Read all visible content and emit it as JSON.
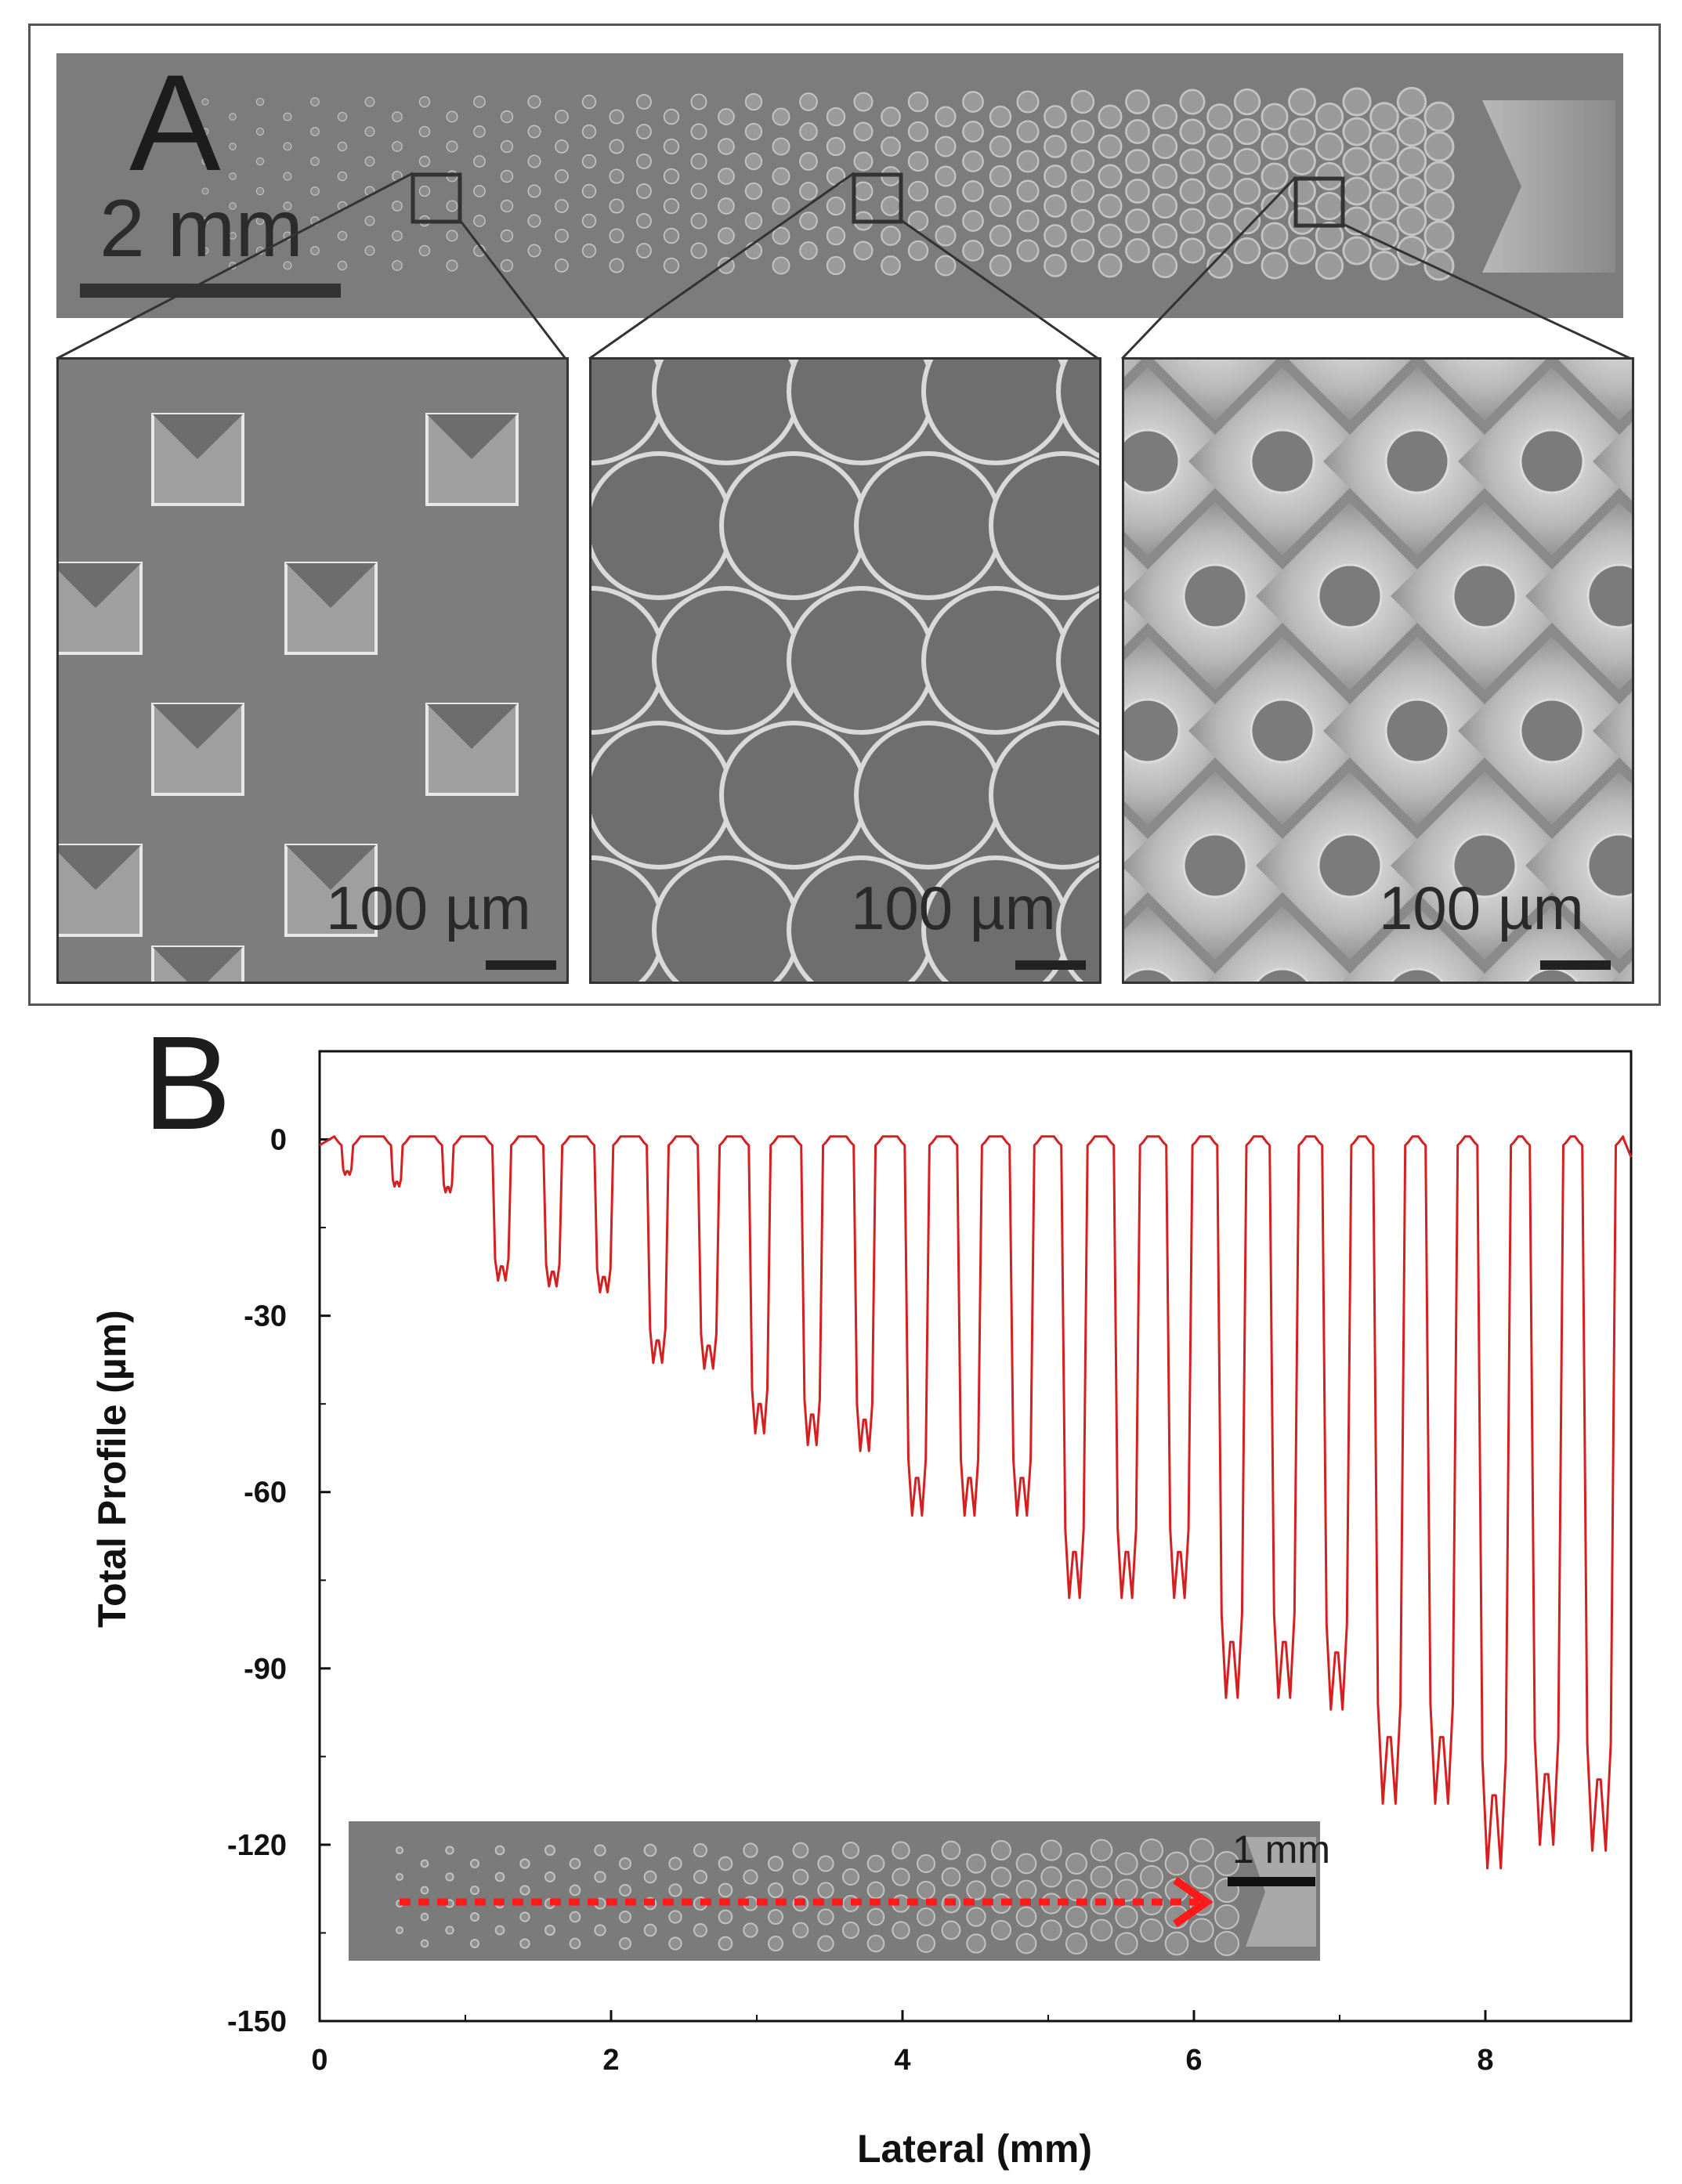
{
  "panel_a": {
    "letter": "A",
    "overview_scale": "2 mm",
    "zoom_scales": [
      "100 µm",
      "100 µm",
      "100 µm"
    ]
  },
  "panel_b": {
    "letter": "B",
    "inset_scale": "1 mm"
  },
  "colors": {
    "trace": "#d42020",
    "sem_gray": "#7c7c7c",
    "arrow": "#ff1a1a"
  },
  "chart_data": {
    "type": "line",
    "title": "",
    "xlabel": "Lateral (mm)",
    "ylabel": "Total Profile (µm)",
    "xlim": [
      0,
      9
    ],
    "ylim": [
      -150,
      15
    ],
    "xticks": [
      0,
      2,
      4,
      6,
      8
    ],
    "yticks": [
      0,
      -30,
      -60,
      -90,
      -120,
      -150
    ],
    "baseline": -1,
    "series": [
      {
        "name": "Total Profile",
        "color": "#d42020",
        "trenches": [
          {
            "x": 0.19,
            "width": 0.08,
            "depth": -6
          },
          {
            "x": 0.53,
            "width": 0.08,
            "depth": -8
          },
          {
            "x": 0.88,
            "width": 0.08,
            "depth": -9
          },
          {
            "x": 1.25,
            "width": 0.13,
            "depth": -24
          },
          {
            "x": 1.6,
            "width": 0.13,
            "depth": -25
          },
          {
            "x": 1.95,
            "width": 0.13,
            "depth": -26
          },
          {
            "x": 2.32,
            "width": 0.15,
            "depth": -38
          },
          {
            "x": 2.67,
            "width": 0.15,
            "depth": -39
          },
          {
            "x": 3.02,
            "width": 0.15,
            "depth": -50
          },
          {
            "x": 3.38,
            "width": 0.15,
            "depth": -52
          },
          {
            "x": 3.74,
            "width": 0.15,
            "depth": -53
          },
          {
            "x": 4.1,
            "width": 0.17,
            "depth": -64
          },
          {
            "x": 4.46,
            "width": 0.17,
            "depth": -64
          },
          {
            "x": 4.82,
            "width": 0.17,
            "depth": -64
          },
          {
            "x": 5.18,
            "width": 0.18,
            "depth": -78
          },
          {
            "x": 5.54,
            "width": 0.18,
            "depth": -78
          },
          {
            "x": 5.9,
            "width": 0.18,
            "depth": -78
          },
          {
            "x": 6.26,
            "width": 0.2,
            "depth": -95
          },
          {
            "x": 6.62,
            "width": 0.2,
            "depth": -95
          },
          {
            "x": 6.98,
            "width": 0.2,
            "depth": -97
          },
          {
            "x": 7.34,
            "width": 0.22,
            "depth": -113
          },
          {
            "x": 7.7,
            "width": 0.22,
            "depth": -113
          },
          {
            "x": 8.06,
            "width": 0.23,
            "depth": -124
          },
          {
            "x": 8.42,
            "width": 0.23,
            "depth": -120
          },
          {
            "x": 8.78,
            "width": 0.23,
            "depth": -121
          }
        ]
      }
    ]
  }
}
